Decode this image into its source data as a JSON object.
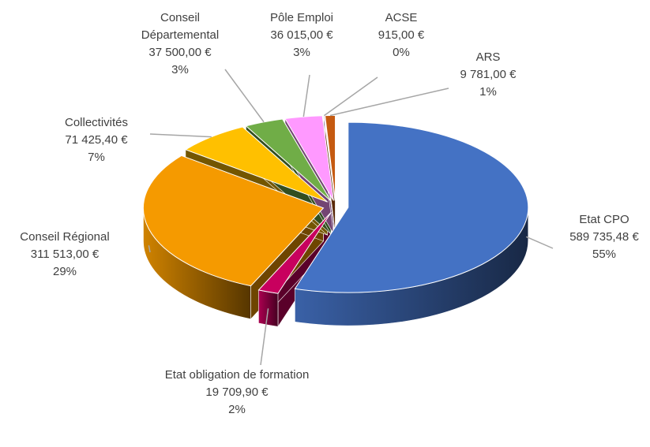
{
  "chart_data": {
    "type": "pie3d",
    "categories": [
      "Etat CPO",
      "Etat obligation de formation",
      "Conseil Régional",
      "Collectivités",
      "Conseil Départemental",
      "Pôle Emploi",
      "ACSE",
      "ARS"
    ],
    "values": [
      589735.48,
      19709.9,
      311513,
      71425.4,
      37500,
      36015,
      915,
      9781
    ],
    "value_labels": [
      "589 735,48 €",
      "19 709,90 €",
      "311 513,00 €",
      "71 425,40 €",
      "37 500,00 €",
      "36 015,00 €",
      "915,00 €",
      "9 781,00 €"
    ],
    "percent_labels": [
      "55%",
      "2%",
      "29%",
      "7%",
      "3%",
      "3%",
      "0%",
      "1%"
    ],
    "colors": [
      "#4472c4",
      "#c8005e",
      "#f59a00",
      "#ffc000",
      "#70ad47",
      "#ff99ff",
      "#7030a0",
      "#c55a11"
    ]
  }
}
